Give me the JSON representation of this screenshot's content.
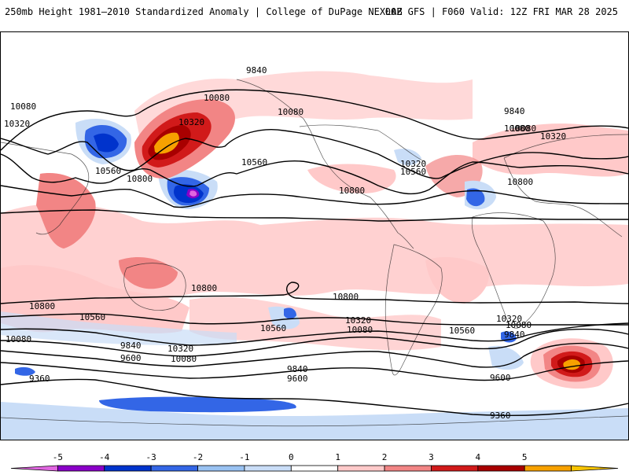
{
  "header": {
    "title_left": "250mb Height 1981–2010 Standardized Anomaly | College of DuPage NEXLAB",
    "title_right": "00Z GFS | F060 Valid: 12Z FRI MAR 28 2025"
  },
  "map": {
    "projection": "equirectangular-global",
    "variable": "250mb geopotential height (dam*10) with standardized anomaly shading",
    "contour_levels": [
      "9360",
      "9600",
      "9840",
      "10080",
      "10320",
      "10560",
      "10800"
    ],
    "contour_labels_north": [
      "9840",
      "10080",
      "10320",
      "10560",
      "10800",
      "10080",
      "10320",
      "10560",
      "10800",
      "10080",
      "9840",
      "10080",
      "10320",
      "10560",
      "10800",
      "10080",
      "10320"
    ],
    "contour_labels_south": [
      "10800",
      "10800",
      "10800",
      "10560",
      "10560",
      "10560",
      "10320",
      "10080",
      "10320",
      "10080",
      "9840",
      "9600",
      "9840",
      "9600",
      "9360",
      "10080",
      "10320",
      "10080",
      "9840",
      "9600",
      "9360"
    ],
    "features": [
      {
        "name": "strong-positive-anomaly-north-pacific",
        "anomaly": 5
      },
      {
        "name": "strong-negative-anomaly-central-north-pacific",
        "anomaly": -5
      },
      {
        "name": "negative-anomaly-east-asia",
        "anomaly": -3
      },
      {
        "name": "strong-positive-anomaly-south-indian-ocean",
        "anomaly": 5
      },
      {
        "name": "negative-anomaly-antarctic-coast",
        "anomaly": -3
      }
    ]
  },
  "colorbar": {
    "ticks": [
      "-5",
      "-4",
      "-3",
      "-2",
      "-1",
      "0",
      "1",
      "2",
      "3",
      "4",
      "5"
    ],
    "colors": [
      "#e066e0",
      "#8a00c8",
      "#0033cc",
      "#3366e6",
      "#99c2f2",
      "#c9ddf7",
      "#ffffff",
      "#ffc9c9",
      "#f28585",
      "#d11a1a",
      "#a80000",
      "#f7a100",
      "#f7c400"
    ]
  }
}
